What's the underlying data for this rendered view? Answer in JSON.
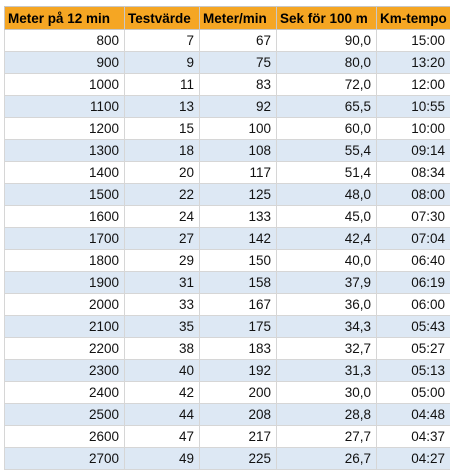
{
  "table": {
    "headers": [
      "Meter på 12 min",
      "Testvärde",
      "Meter/min",
      "Sek för 100 m",
      "Km-tempo"
    ],
    "rows": [
      [
        "800",
        "7",
        "67",
        "90,0",
        "15:00"
      ],
      [
        "900",
        "9",
        "75",
        "80,0",
        "13:20"
      ],
      [
        "1000",
        "11",
        "83",
        "72,0",
        "12:00"
      ],
      [
        "1100",
        "13",
        "92",
        "65,5",
        "10:55"
      ],
      [
        "1200",
        "15",
        "100",
        "60,0",
        "10:00"
      ],
      [
        "1300",
        "18",
        "108",
        "55,4",
        "09:14"
      ],
      [
        "1400",
        "20",
        "117",
        "51,4",
        "08:34"
      ],
      [
        "1500",
        "22",
        "125",
        "48,0",
        "08:00"
      ],
      [
        "1600",
        "24",
        "133",
        "45,0",
        "07:30"
      ],
      [
        "1700",
        "27",
        "142",
        "42,4",
        "07:04"
      ],
      [
        "1800",
        "29",
        "150",
        "40,0",
        "06:40"
      ],
      [
        "1900",
        "31",
        "158",
        "37,9",
        "06:19"
      ],
      [
        "2000",
        "33",
        "167",
        "36,0",
        "06:00"
      ],
      [
        "2100",
        "35",
        "175",
        "34,3",
        "05:43"
      ],
      [
        "2200",
        "38",
        "183",
        "32,7",
        "05:27"
      ],
      [
        "2300",
        "40",
        "192",
        "31,3",
        "05:13"
      ],
      [
        "2400",
        "42",
        "200",
        "30,0",
        "05:00"
      ],
      [
        "2500",
        "44",
        "208",
        "28,8",
        "04:48"
      ],
      [
        "2600",
        "47",
        "217",
        "27,7",
        "04:37"
      ],
      [
        "2700",
        "49",
        "225",
        "26,7",
        "04:27"
      ]
    ]
  },
  "colors": {
    "header_background": "#f5a623",
    "stripe_background": "#dde8f4"
  }
}
